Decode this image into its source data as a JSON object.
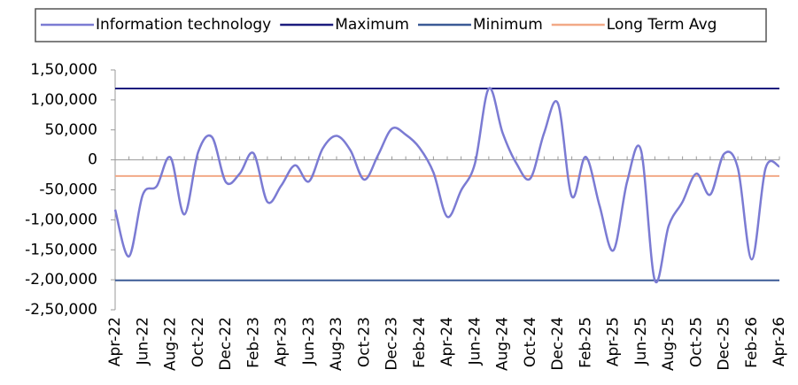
{
  "chart_data": {
    "type": "line",
    "categories": [
      "Apr-22",
      null,
      "Jun-22",
      null,
      "Aug-22",
      null,
      "Oct-22",
      null,
      "Dec-22",
      null,
      "Feb-23",
      null,
      "Apr-23",
      null,
      "Jun-23",
      null,
      "Aug-23",
      null,
      "Oct-23",
      null,
      "Dec-23",
      null,
      "Feb-24",
      null,
      "Apr-24",
      null,
      "Jun-24",
      null,
      "Aug-24",
      null,
      "Oct-24",
      null,
      "Dec-24",
      null,
      "Feb-25",
      null,
      "Apr-25",
      null,
      "Jun-25",
      null,
      "Aug-25",
      null,
      "Oct-25",
      null,
      "Dec-25",
      null,
      "Feb-26",
      null,
      "Apr-26"
    ],
    "series": [
      {
        "name": "Information  technology",
        "color": "#7b7bd3",
        "values": [
          -83000,
          -161000,
          -58000,
          -44000,
          4000,
          -91000,
          13000,
          38000,
          -37000,
          -23000,
          11000,
          -70000,
          -43000,
          -9000,
          -36000,
          19000,
          40000,
          16000,
          -33000,
          8000,
          52000,
          42000,
          20000,
          -21000,
          -95000,
          -51000,
          -6000,
          119000,
          45000,
          -6000,
          -31000,
          45000,
          94000,
          -61000,
          5000,
          -76000,
          -151000,
          -36000,
          16000,
          -201000,
          -110000,
          -70000,
          -23000,
          -58000,
          10000,
          -14000,
          -166000,
          -14000,
          -11000
        ]
      }
    ],
    "reference_lines": [
      {
        "name": "Maximum",
        "color": "#1c1c7e",
        "value": 119000
      },
      {
        "name": "Minimum",
        "color": "#3b5a96",
        "value": -201000
      },
      {
        "name": "Long Term Avg",
        "color": "#f2a987",
        "value": -27000
      }
    ],
    "ylim": [
      -250000,
      150000
    ],
    "yticks": [
      {
        "value": -250000,
        "label": "-2,50,000"
      },
      {
        "value": -200000,
        "label": "-2,00,000"
      },
      {
        "value": -150000,
        "label": "-1,50,000"
      },
      {
        "value": -100000,
        "label": "-1,00,000"
      },
      {
        "value": -50000,
        "label": "-50,000"
      },
      0,
      {
        "value": 50000,
        "label": "50,000"
      },
      {
        "value": 100000,
        "label": "1,00,000"
      },
      {
        "value": 150000,
        "label": "1,50,000"
      }
    ]
  }
}
